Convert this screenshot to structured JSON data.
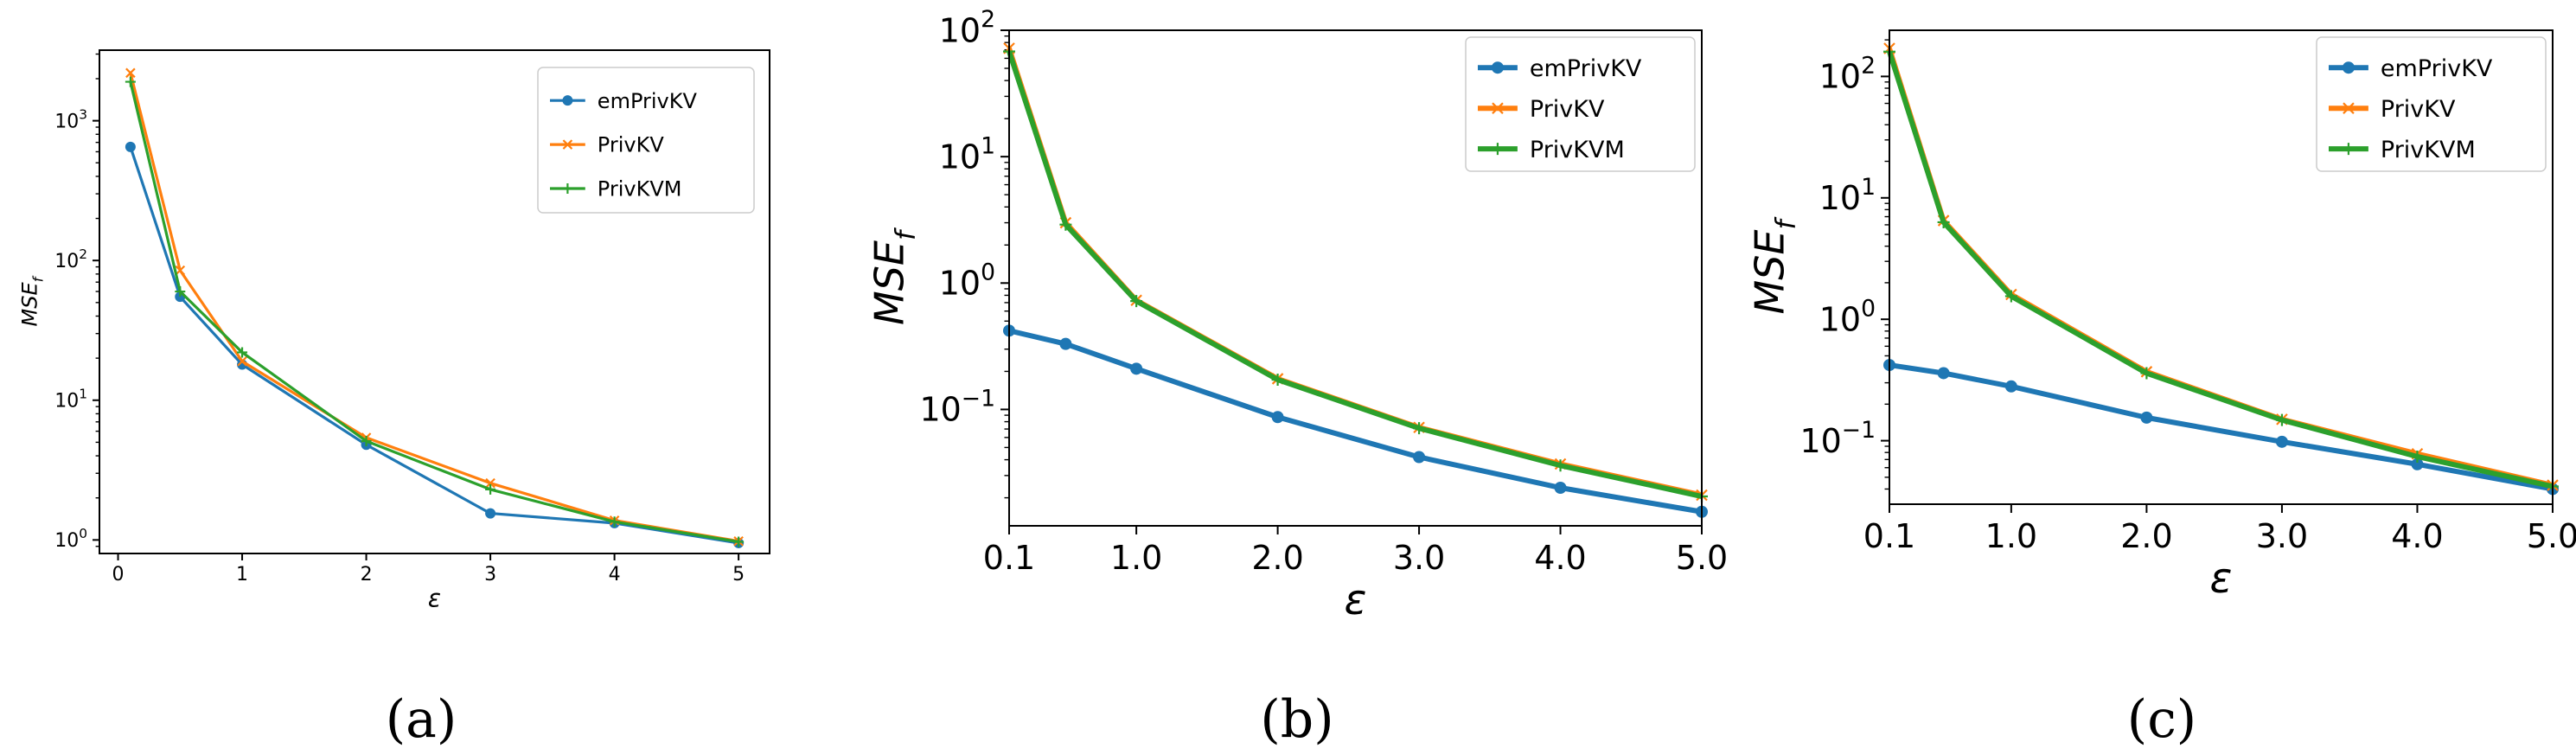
{
  "chart_data": [
    {
      "type": "line",
      "y_scale": "log",
      "xlabel": "ε",
      "ylabel_main": "MSE",
      "ylabel_sub": "f",
      "caption": "(a)",
      "x_ticks": [
        "0",
        "1",
        "2",
        "3",
        "4",
        "5"
      ],
      "x_tick_values": [
        0,
        1,
        2,
        3,
        4,
        5
      ],
      "xlim": [
        -0.15,
        5.25
      ],
      "ylim": [
        0.8,
        3200
      ],
      "y_ticks": [
        {
          "base": "10",
          "exp": "0",
          "value": 1
        },
        {
          "base": "10",
          "exp": "1",
          "value": 10
        },
        {
          "base": "10",
          "exp": "2",
          "value": 100
        },
        {
          "base": "10",
          "exp": "3",
          "value": 1000
        }
      ],
      "legend": {
        "position": "top-right",
        "entries": [
          "emPrivKV",
          "PrivKV",
          "PrivKVM"
        ]
      },
      "series": [
        {
          "name": "emPrivKV",
          "color": "#1f77b4",
          "marker": "circle",
          "x": [
            0.1,
            0.5,
            1,
            2,
            3,
            4,
            5
          ],
          "y": [
            650,
            55,
            18,
            4.8,
            1.55,
            1.32,
            0.95
          ]
        },
        {
          "name": "PrivKV",
          "color": "#ff7f0e",
          "marker": "x",
          "x": [
            0.1,
            0.5,
            1,
            2,
            3,
            4,
            5
          ],
          "y": [
            2200,
            85,
            19,
            5.4,
            2.55,
            1.38,
            0.98
          ]
        },
        {
          "name": "PrivKVM",
          "color": "#2ca02c",
          "marker": "plus",
          "x": [
            0.1,
            0.5,
            1,
            2,
            3,
            4,
            5
          ],
          "y": [
            1900,
            60,
            22,
            5.1,
            2.3,
            1.35,
            0.97
          ]
        }
      ]
    },
    {
      "type": "line",
      "y_scale": "log",
      "xlabel": "ε",
      "ylabel_main": "MSE",
      "ylabel_sub": "f",
      "caption": "(b)",
      "x_ticks": [
        "0.1",
        "1.0",
        "2.0",
        "3.0",
        "4.0",
        "5.0"
      ],
      "x_tick_values": [
        0.1,
        1,
        2,
        3,
        4,
        5
      ],
      "xlim": [
        0.1,
        5.0
      ],
      "ylim": [
        0.012,
        100
      ],
      "y_ticks": [
        {
          "base": "10",
          "exp": "−1",
          "value": 0.1
        },
        {
          "base": "10",
          "exp": "0",
          "value": 1
        },
        {
          "base": "10",
          "exp": "1",
          "value": 10
        },
        {
          "base": "10",
          "exp": "2",
          "value": 100
        }
      ],
      "legend": {
        "position": "top-right",
        "entries": [
          "emPrivKV",
          "PrivKV",
          "PrivKVM"
        ]
      },
      "series": [
        {
          "name": "emPrivKV",
          "color": "#1f77b4",
          "marker": "circle",
          "x": [
            0.1,
            0.5,
            1,
            2,
            3,
            4,
            5
          ],
          "y": [
            0.42,
            0.33,
            0.21,
            0.087,
            0.042,
            0.024,
            0.0155
          ]
        },
        {
          "name": "PrivKV",
          "color": "#ff7f0e",
          "marker": "x",
          "x": [
            0.1,
            0.5,
            1,
            2,
            3,
            4,
            5
          ],
          "y": [
            72,
            3.0,
            0.73,
            0.175,
            0.072,
            0.037,
            0.021
          ]
        },
        {
          "name": "PrivKVM",
          "color": "#2ca02c",
          "marker": "plus",
          "x": [
            0.1,
            0.5,
            1,
            2,
            3,
            4,
            5
          ],
          "y": [
            68,
            2.9,
            0.72,
            0.172,
            0.071,
            0.036,
            0.0205
          ]
        }
      ]
    },
    {
      "type": "line",
      "y_scale": "log",
      "xlabel": "ε",
      "ylabel_main": "MSE",
      "ylabel_sub": "f",
      "caption": "(c)",
      "x_ticks": [
        "0.1",
        "1.0",
        "2.0",
        "3.0",
        "4.0",
        "5.0"
      ],
      "x_tick_values": [
        0.1,
        1,
        2,
        3,
        4,
        5
      ],
      "xlim": [
        0.1,
        5.0
      ],
      "ylim": [
        0.03,
        240
      ],
      "y_ticks": [
        {
          "base": "10",
          "exp": "−1",
          "value": 0.1
        },
        {
          "base": "10",
          "exp": "0",
          "value": 1
        },
        {
          "base": "10",
          "exp": "1",
          "value": 10
        },
        {
          "base": "10",
          "exp": "2",
          "value": 100
        }
      ],
      "legend": {
        "position": "top-right",
        "entries": [
          "emPrivKV",
          "PrivKV",
          "PrivKVM"
        ]
      },
      "series": [
        {
          "name": "emPrivKV",
          "color": "#1f77b4",
          "marker": "circle",
          "x": [
            0.1,
            0.5,
            1,
            2,
            3,
            4,
            5
          ],
          "y": [
            0.42,
            0.36,
            0.28,
            0.155,
            0.098,
            0.064,
            0.04
          ]
        },
        {
          "name": "PrivKV",
          "color": "#ff7f0e",
          "marker": "x",
          "x": [
            0.1,
            0.5,
            1,
            2,
            3,
            4,
            5
          ],
          "y": [
            170,
            6.5,
            1.6,
            0.37,
            0.15,
            0.078,
            0.043
          ]
        },
        {
          "name": "PrivKVM",
          "color": "#2ca02c",
          "marker": "plus",
          "x": [
            0.1,
            0.5,
            1,
            2,
            3,
            4,
            5
          ],
          "y": [
            160,
            6.3,
            1.55,
            0.36,
            0.148,
            0.074,
            0.042
          ]
        }
      ]
    }
  ]
}
